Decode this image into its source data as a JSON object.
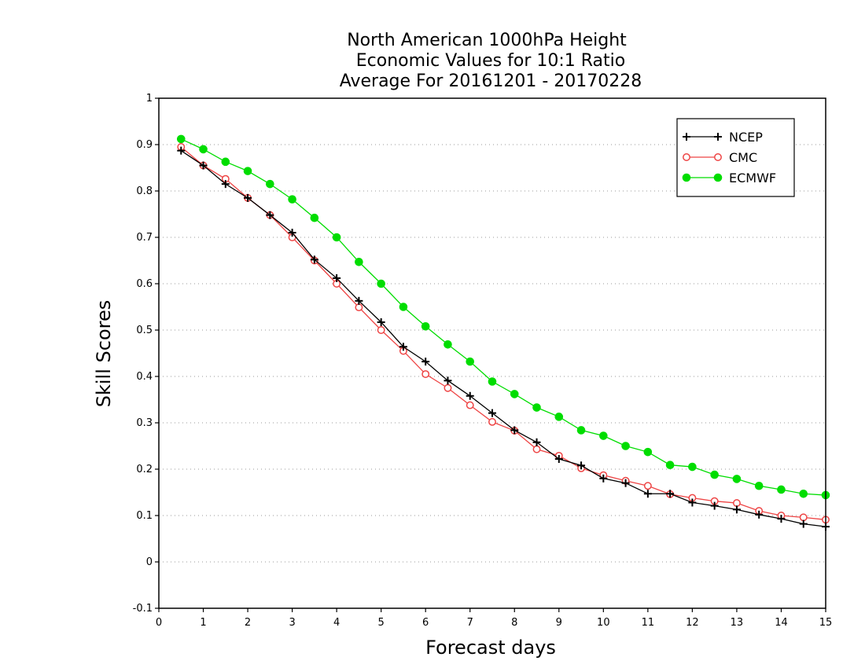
{
  "chart_data": {
    "type": "line",
    "title_lines": [
      "North American 1000hPa Height",
      "Economic Values for 10:1 Ratio",
      "Average For 20161201 - 20170228"
    ],
    "xlabel": "Forecast days",
    "ylabel": "Skill Scores",
    "xlim": [
      0,
      15
    ],
    "ylim": [
      -0.1,
      1
    ],
    "x_ticks": [
      0,
      1,
      2,
      3,
      4,
      5,
      6,
      7,
      8,
      9,
      10,
      11,
      12,
      13,
      14,
      15
    ],
    "y_ticks": [
      -0.1,
      0,
      0.1,
      0.2,
      0.3,
      0.4,
      0.5,
      0.6,
      0.7,
      0.8,
      0.9,
      1
    ],
    "y_tick_labels": [
      "-0.1",
      "0",
      "0.1",
      "0.2",
      "0.3",
      "0.4",
      "0.5",
      "0.6",
      "0.7",
      "0.8",
      "0.9",
      "1"
    ],
    "grid": "horizontal dotted",
    "legend_position": "top-right",
    "x": [
      0.5,
      1,
      1.5,
      2,
      2.5,
      3,
      3.5,
      4,
      4.5,
      5,
      5.5,
      6,
      6.5,
      7,
      7.5,
      8,
      8.5,
      9,
      9.5,
      10,
      10.5,
      11,
      11.5,
      12,
      12.5,
      13,
      13.5,
      14,
      14.5,
      15
    ],
    "series": [
      {
        "name": "NCEP",
        "color": "#000000",
        "marker": "plus",
        "values": [
          0.887,
          0.855,
          0.815,
          0.785,
          0.748,
          0.71,
          0.652,
          0.612,
          0.563,
          0.517,
          0.464,
          0.432,
          0.391,
          0.358,
          0.321,
          0.284,
          0.258,
          0.222,
          0.208,
          0.18,
          0.17,
          0.147,
          0.147,
          0.128,
          0.121,
          0.113,
          0.102,
          0.093,
          0.082,
          0.076
        ]
      },
      {
        "name": "CMC",
        "color": "#ee4444",
        "marker": "open-circle",
        "values": [
          0.895,
          0.855,
          0.826,
          0.785,
          0.748,
          0.7,
          0.65,
          0.6,
          0.549,
          0.5,
          0.455,
          0.405,
          0.375,
          0.338,
          0.302,
          0.283,
          0.243,
          0.229,
          0.202,
          0.187,
          0.175,
          0.164,
          0.146,
          0.138,
          0.131,
          0.127,
          0.11,
          0.1,
          0.096,
          0.091
        ]
      },
      {
        "name": "ECMWF",
        "color": "#00dd00",
        "marker": "filled-circle",
        "values": [
          0.912,
          0.89,
          0.863,
          0.843,
          0.815,
          0.782,
          0.742,
          0.7,
          0.647,
          0.6,
          0.55,
          0.508,
          0.469,
          0.432,
          0.389,
          0.362,
          0.333,
          0.313,
          0.284,
          0.272,
          0.25,
          0.237,
          0.209,
          0.205,
          0.188,
          0.179,
          0.164,
          0.156,
          0.147,
          0.144
        ]
      }
    ]
  }
}
